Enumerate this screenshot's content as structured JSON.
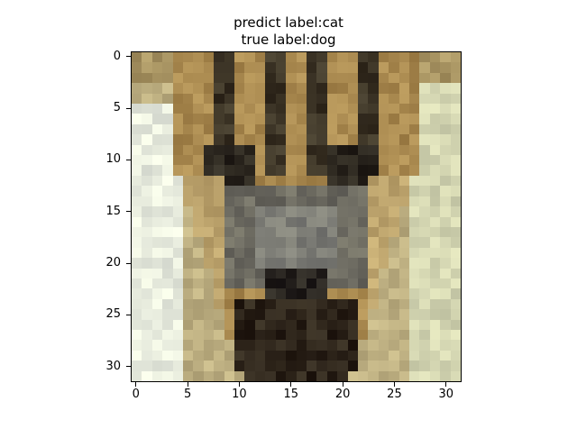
{
  "title": {
    "line1": "predict label:cat",
    "line2": "true label:dog"
  },
  "axes": {
    "x_ticks": [
      "0",
      "5",
      "10",
      "15",
      "20",
      "25",
      "30"
    ],
    "y_ticks": [
      "0",
      "5",
      "10",
      "15",
      "20",
      "25",
      "30"
    ],
    "x_tick_values": [
      0,
      5,
      10,
      15,
      20,
      25,
      30
    ],
    "y_tick_values": [
      0,
      5,
      10,
      15,
      20,
      25,
      30
    ],
    "pixel_count": 32
  },
  "image": {
    "description_colors": {
      "background_light": "#eef0e4",
      "fur_tan": "#b49a64",
      "fur_dark": "#3b3322",
      "face_gray": "#6e6c60",
      "nose_black": "#201c18"
    }
  }
}
